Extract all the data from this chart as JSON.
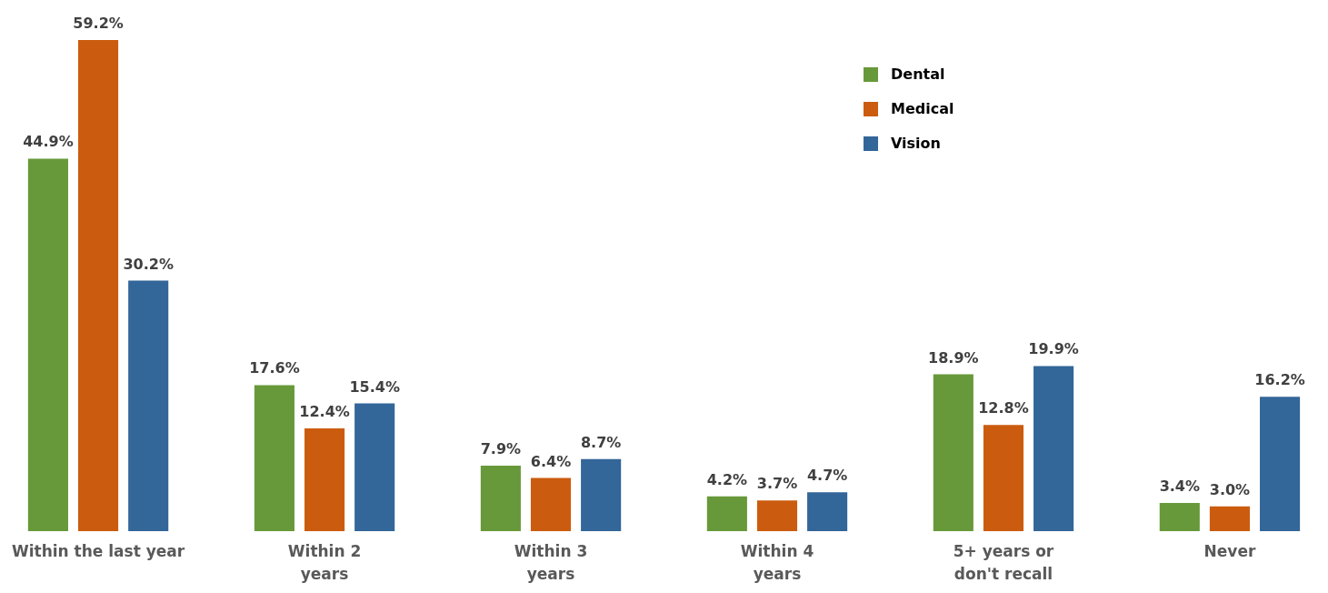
{
  "chart_data": {
    "type": "bar",
    "categories": [
      "Within the last year",
      "Within 2\nyears",
      "Within 3\nyears",
      "Within 4\nyears",
      "5+ years or\ndon't recall",
      "Never"
    ],
    "series": [
      {
        "name": "Dental",
        "color": "#67993a",
        "values": [
          44.9,
          17.6,
          7.9,
          4.2,
          18.9,
          3.4
        ],
        "value_labels": [
          "44.9%",
          "17.6%",
          "7.9%",
          "4.2%",
          "18.9%",
          "3.4%"
        ]
      },
      {
        "name": "Medical",
        "color": "#cb5c0f",
        "values": [
          59.2,
          12.4,
          6.4,
          3.7,
          12.8,
          3.0
        ],
        "value_labels": [
          "59.2%",
          "12.4%",
          "6.4%",
          "3.7%",
          "12.8%",
          "3.0%"
        ]
      },
      {
        "name": "Vision",
        "color": "#336699",
        "values": [
          30.2,
          15.4,
          8.7,
          4.7,
          19.9,
          16.2
        ],
        "value_labels": [
          "30.2%",
          "15.4%",
          "8.7%",
          "4.7%",
          "19.9%",
          "16.2%"
        ]
      }
    ],
    "legend": "top right",
    "tick_labels": "x"
  }
}
